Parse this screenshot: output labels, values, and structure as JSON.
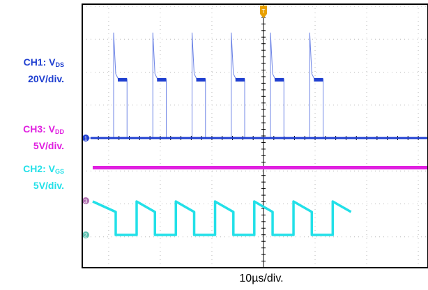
{
  "colors": {
    "ch1": "#1f3fd0",
    "ch1_light": "#6f86e6",
    "ch2": "#22e0e8",
    "ch3": "#e020e0",
    "grid": "#b8b8b8",
    "frame": "#000000",
    "trigger": "#e8a000"
  },
  "labels": {
    "ch1_prefix": "CH1: V",
    "ch1_sub": "DS",
    "ch1_scale": "20V/div.",
    "ch3_prefix": "CH3: V",
    "ch3_sub": "DD",
    "ch3_scale": "5V/div.",
    "ch2_prefix": "CH2: V",
    "ch2_sub": "GS",
    "ch2_scale": "5V/div."
  },
  "markers": {
    "ch1": "1",
    "ch2": "2",
    "ch3": "3",
    "trigger": "T"
  },
  "chart_data": {
    "type": "line",
    "time_per_div_us": 10,
    "xlabel": "10µs/div.",
    "x_divisions": 10,
    "y_divisions": 8,
    "xlim_us": [
      0,
      50
    ],
    "period_us": 7.6,
    "series": [
      {
        "name": "CH1: VDS",
        "volts_per_div": 20,
        "pulse_rise_times_us": [
          3.3,
          10.9,
          18.5,
          26.1,
          33.7,
          41.3
        ],
        "high_duration_us": 2.6,
        "low_level_div": 0,
        "high_level_div": 1.78,
        "spike_level_div": 3.2
      },
      {
        "name": "CH3: VDD",
        "volts_per_div": 5,
        "level_div": 1.0
      },
      {
        "name": "CH2: VGS",
        "volts_per_div": 5,
        "high_start_div": 2.65,
        "high_end_div": 1.55,
        "low_level_div": 0.95
      }
    ]
  }
}
